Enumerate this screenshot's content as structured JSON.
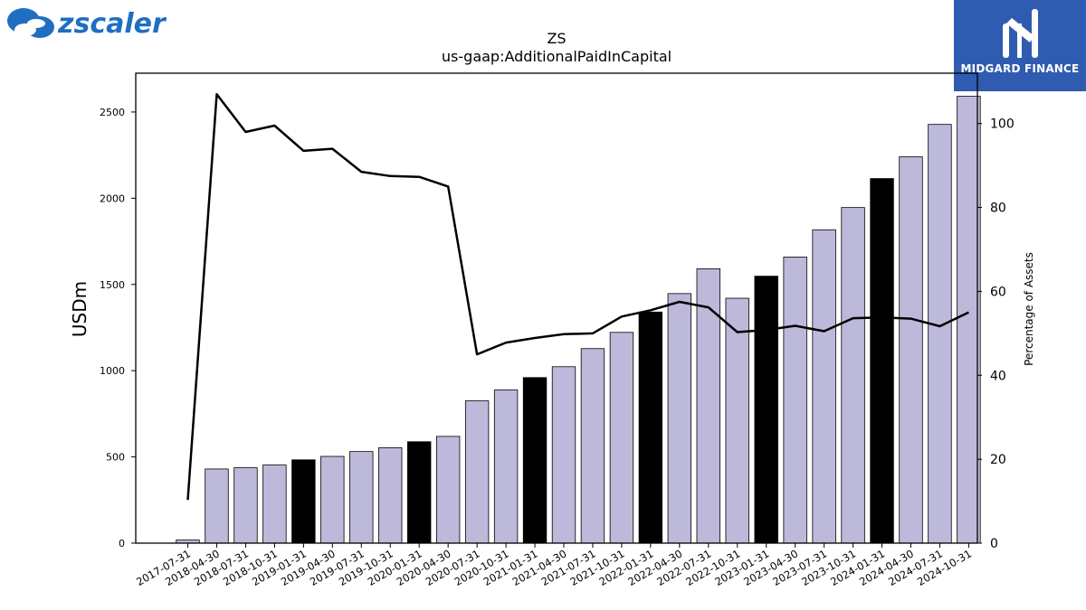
{
  "logos": {
    "left_text": "zscaler",
    "left_icon": "zscaler-cloud-icon",
    "right_text": "MIDGARD FINANCE",
    "right_icon": "midgard-m-icon"
  },
  "colors": {
    "bar": "#bdb9da",
    "bar_highlight": "#000000",
    "line": "#000000",
    "brand_right": "#2f5bb0",
    "brand_left": "#1f6ec2"
  },
  "chart_data": {
    "type": "bar",
    "title": "ZS",
    "subtitle": "us-gaap:AdditionalPaidInCapital",
    "ylabel": "USDm",
    "y2label": "Percentage of Assets",
    "ylim": [
      0,
      2725
    ],
    "y2lim": [
      0,
      112
    ],
    "yticks": [
      0,
      500,
      1000,
      1500,
      2000,
      2500
    ],
    "y2ticks": [
      0,
      20,
      40,
      60,
      80,
      100
    ],
    "categories": [
      "2017-07-31",
      "2018-04-30",
      "2018-07-31",
      "2018-10-31",
      "2019-01-31",
      "2019-04-30",
      "2019-07-31",
      "2019-10-31",
      "2020-01-31",
      "2020-04-30",
      "2020-07-31",
      "2020-10-31",
      "2021-01-31",
      "2021-04-30",
      "2021-07-31",
      "2021-10-31",
      "2022-01-31",
      "2022-04-30",
      "2022-07-31",
      "2022-10-31",
      "2023-01-31",
      "2023-04-30",
      "2023-07-31",
      "2023-10-31",
      "2024-01-31",
      "2024-04-30",
      "2024-07-31",
      "2024-10-31"
    ],
    "values": [
      18,
      430,
      437,
      453,
      483,
      503,
      531,
      553,
      588,
      619,
      825,
      888,
      960,
      1023,
      1128,
      1222,
      1340,
      1447,
      1591,
      1420,
      1548,
      1659,
      1817,
      1946,
      2114,
      2240,
      2428,
      2591
    ],
    "highlighted": [
      false,
      false,
      false,
      false,
      true,
      false,
      false,
      false,
      true,
      false,
      false,
      false,
      true,
      false,
      false,
      false,
      true,
      false,
      false,
      false,
      true,
      false,
      false,
      false,
      true,
      false,
      false,
      false
    ],
    "line_series": {
      "axis": "right",
      "values": [
        10.3,
        107.0,
        98.0,
        99.5,
        93.5,
        94.0,
        88.5,
        87.5,
        87.3,
        85.0,
        45.0,
        47.8,
        48.9,
        49.8,
        50.0,
        54.0,
        55.5,
        57.5,
        56.2,
        50.3,
        50.8,
        51.8,
        50.5,
        53.6,
        53.8,
        53.5,
        51.7,
        55.0
      ]
    }
  }
}
